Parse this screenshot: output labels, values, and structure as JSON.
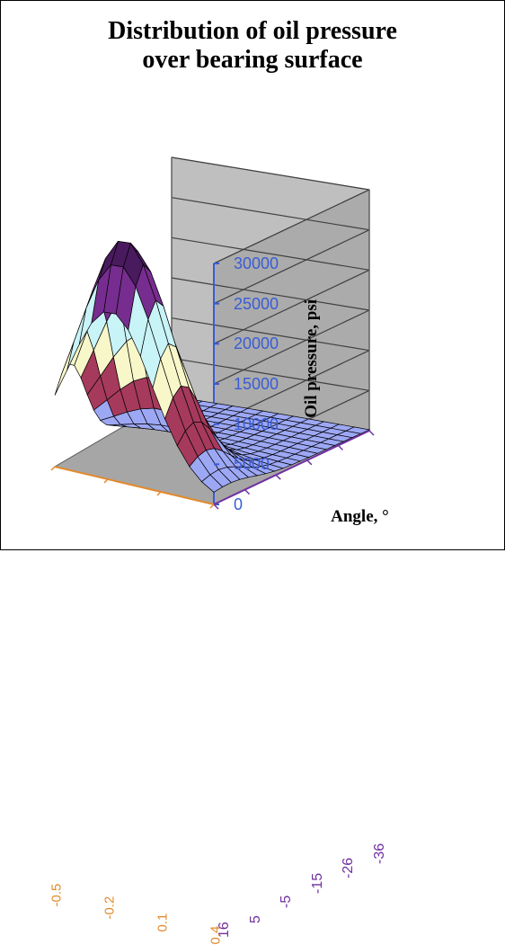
{
  "title": {
    "line1": "Distribution of oil pressure",
    "line2": "over bearing surface",
    "fontsize": 28,
    "color": "#000000"
  },
  "chart": {
    "type": "3d-surface",
    "background_color": "#ffffff",
    "wall_fill": "#bfbfbf",
    "wall_stroke": "#595959",
    "floor_fill": "#a6a6a6",
    "grid_stroke": "#404040",
    "grid_stroke_width": 1,
    "mesh_stroke": "#000000",
    "mesh_stroke_width": 0.7,
    "bands": [
      {
        "range": [
          0,
          5000
        ],
        "color": "#9da8f5"
      },
      {
        "range": [
          5000,
          10000
        ],
        "color": "#a63a5c"
      },
      {
        "range": [
          10000,
          15000
        ],
        "color": "#f8f7c9"
      },
      {
        "range": [
          15000,
          20000
        ],
        "color": "#c8f3f7"
      },
      {
        "range": [
          20000,
          25000
        ],
        "color": "#772d8f"
      },
      {
        "range": [
          25000,
          30000
        ],
        "color": "#4a1a5f"
      }
    ],
    "z_axis": {
      "label": "Oil pressure, psi",
      "label_fontsize": 19,
      "tick_fontsize": 18,
      "tick_color": "#3a5cd6",
      "ticks": [
        0,
        5000,
        10000,
        15000,
        20000,
        25000,
        30000
      ],
      "lim": [
        0,
        30000
      ]
    },
    "x_axis": {
      "label": "Angle, °",
      "label_fontsize": 19,
      "tick_fontsize": 16,
      "tick_color": "#7030a0",
      "ticks": [
        16,
        5,
        -5,
        -15,
        -26,
        -36
      ]
    },
    "y_axis": {
      "tick_fontsize": 15,
      "tick_color": "#e28a2b",
      "ticks": [
        -0.5,
        -0.2,
        0.1,
        0.4
      ]
    },
    "surface_grid": {
      "u_lines": 18,
      "v_lines": 13
    },
    "peak": {
      "x_index": 1,
      "y_approx": -0.05,
      "z": 27500
    }
  }
}
